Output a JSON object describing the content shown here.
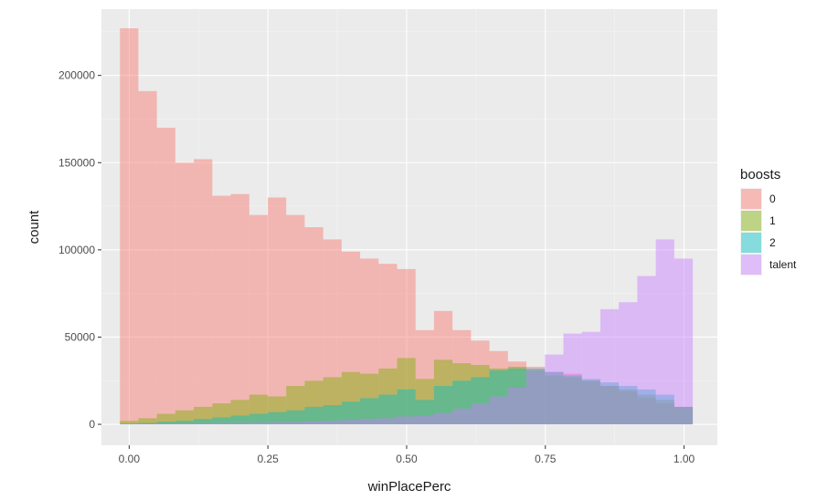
{
  "chart_data": {
    "type": "histogram",
    "xlabel": "winPlacePerc",
    "ylabel": "count",
    "xlim": [
      -0.05,
      1.06
    ],
    "ylim": [
      -12000,
      238000
    ],
    "x_ticks": [
      0.0,
      0.25,
      0.5,
      0.75,
      1.0
    ],
    "x_tick_labels": [
      "0.00",
      "0.25",
      "0.50",
      "0.75",
      "1.00"
    ],
    "y_ticks": [
      0,
      50000,
      100000,
      150000,
      200000
    ],
    "y_tick_labels": [
      "0",
      "50000",
      "100000",
      "150000",
      "200000"
    ],
    "grid": true,
    "panel_background": "#ebebeb",
    "bins": {
      "start": -0.0167,
      "width": 0.0333,
      "count": 31
    },
    "legend": {
      "title": "boosts",
      "position": "right"
    },
    "series": [
      {
        "name": "0",
        "color": "#F8766D",
        "values": [
          227000,
          191000,
          170000,
          150000,
          152000,
          131000,
          132000,
          120000,
          130000,
          120000,
          113000,
          106000,
          99000,
          95000,
          92000,
          89000,
          54000,
          65000,
          54000,
          48000,
          42000,
          36000,
          33000,
          30000,
          29000,
          25000,
          22000,
          19000,
          15000,
          12000,
          10000
        ]
      },
      {
        "name": "1",
        "color": "#7CAE00",
        "values": [
          2000,
          3500,
          6000,
          8000,
          10000,
          12000,
          14000,
          17000,
          16000,
          22000,
          25000,
          27000,
          30000,
          29000,
          32000,
          38000,
          26000,
          37000,
          35000,
          34000,
          32000,
          33000,
          31000,
          28000,
          27000,
          25000,
          22000,
          20000,
          17000,
          14000,
          10000
        ]
      },
      {
        "name": "2",
        "color": "#00BFC4",
        "values": [
          500,
          800,
          1500,
          2000,
          3000,
          4000,
          5000,
          6000,
          7000,
          8000,
          10000,
          11000,
          13000,
          15000,
          17000,
          20000,
          14000,
          22000,
          25000,
          27000,
          31000,
          32000,
          32000,
          30000,
          28000,
          26000,
          24000,
          22000,
          20000,
          17000,
          10000
        ]
      },
      {
        "name": "talent",
        "color": "#C77CFF",
        "values": [
          300,
          400,
          500,
          600,
          700,
          800,
          900,
          1000,
          1200,
          1400,
          1700,
          2000,
          2500,
          3000,
          3500,
          4500,
          5000,
          6500,
          9000,
          12000,
          16000,
          21000,
          31000,
          40000,
          52000,
          53000,
          66000,
          70000,
          85000,
          106000,
          95000
        ]
      }
    ]
  }
}
